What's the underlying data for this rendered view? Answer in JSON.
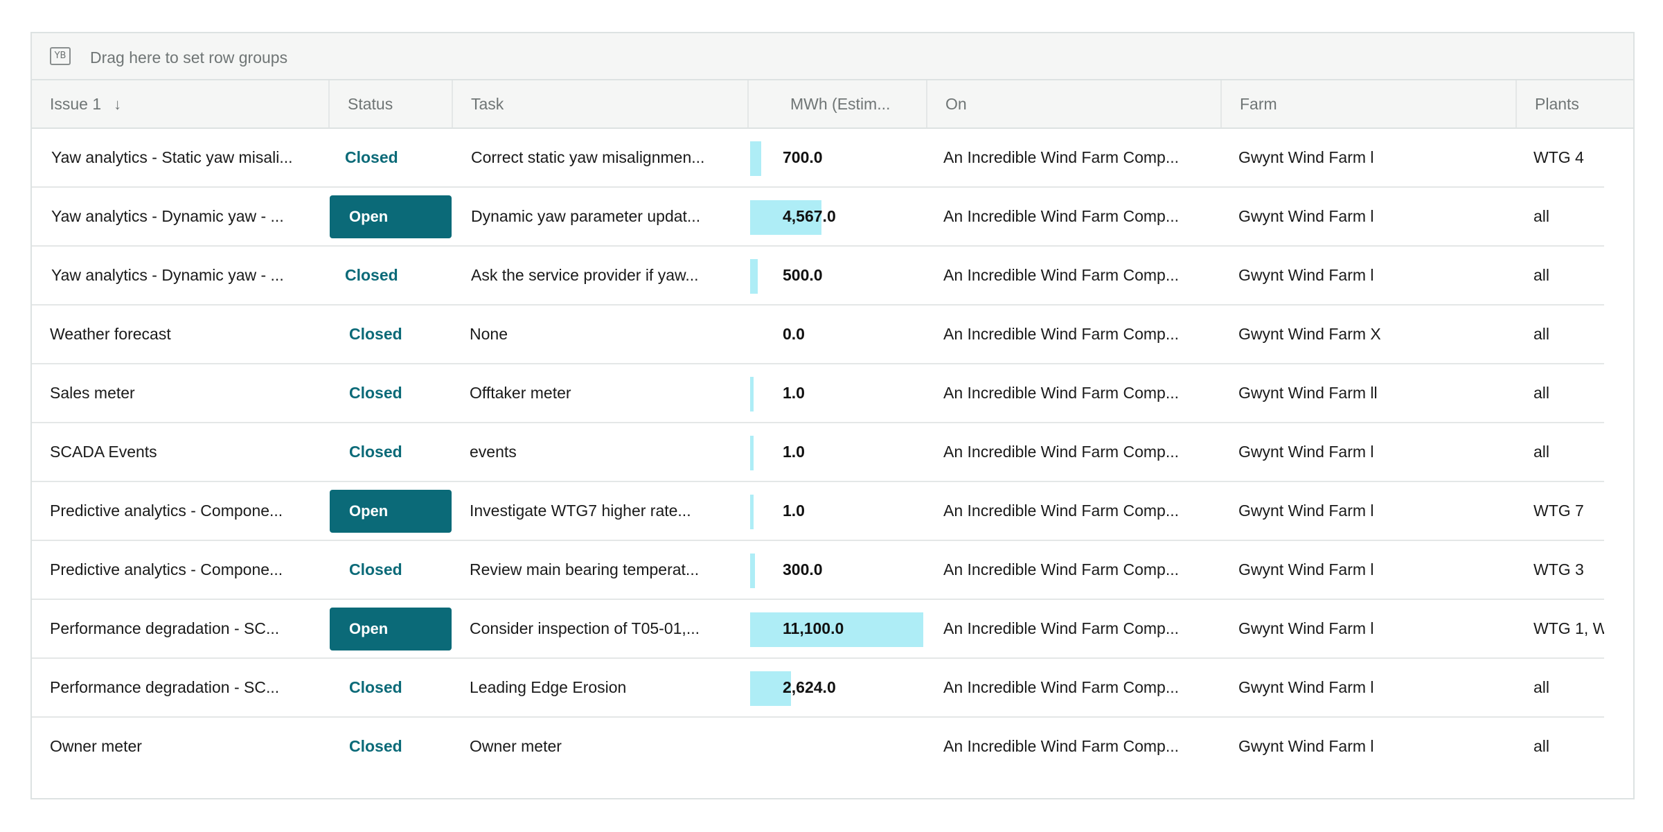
{
  "group_bar": {
    "icon": "row-group-icon",
    "icon_text": "YB",
    "text": "Drag here to set row groups"
  },
  "columns": {
    "issue": "Issue 1",
    "status": "Status",
    "task": "Task",
    "mwh": "MWh (Estim...",
    "on": "On",
    "farm": "Farm",
    "plants": "Plants"
  },
  "sort_icon": "↓",
  "mwh_max": 11100,
  "colors": {
    "accent": "#0b6a78",
    "bar": "#aeedf6"
  },
  "rows": [
    {
      "issue": "Yaw analytics - Static yaw misali...",
      "status": "Closed",
      "task": "Correct static yaw misalignmen...",
      "mwh": "700.0",
      "mwh_value": 700,
      "on": "An Incredible Wind Farm Comp...",
      "farm": "Gwynt Wind Farm l",
      "plants": "WTG 4"
    },
    {
      "issue": "Yaw analytics - Dynamic yaw - ...",
      "status": "Open",
      "task": "Dynamic yaw parameter updat...",
      "mwh": "4,567.0",
      "mwh_value": 4567,
      "on": "An Incredible Wind Farm Comp...",
      "farm": "Gwynt Wind Farm l",
      "plants": "all"
    },
    {
      "issue": "Yaw analytics - Dynamic yaw - ...",
      "status": "Closed",
      "task": "Ask the service provider if yaw...",
      "mwh": "500.0",
      "mwh_value": 500,
      "on": "An Incredible Wind Farm Comp...",
      "farm": "Gwynt Wind Farm l",
      "plants": "all"
    },
    {
      "issue": "Weather forecast",
      "status": "Closed",
      "task": "None",
      "mwh": "0.0",
      "mwh_value": 0,
      "on": "An Incredible Wind Farm Comp...",
      "farm": "Gwynt Wind Farm X",
      "plants": "all"
    },
    {
      "issue": "Sales meter",
      "status": "Closed",
      "task": "Offtaker meter",
      "mwh": "1.0",
      "mwh_value": 1,
      "on": "An Incredible Wind Farm Comp...",
      "farm": "Gwynt Wind Farm ll",
      "plants": "all"
    },
    {
      "issue": "SCADA Events",
      "status": "Closed",
      "task": "events",
      "mwh": "1.0",
      "mwh_value": 1,
      "on": "An Incredible Wind Farm Comp...",
      "farm": "Gwynt Wind Farm l",
      "plants": "all"
    },
    {
      "issue": "Predictive analytics - Compone...",
      "status": "Open",
      "task": "Investigate WTG7 higher rate...",
      "mwh": "1.0",
      "mwh_value": 1,
      "on": "An Incredible Wind Farm Comp...",
      "farm": "Gwynt Wind Farm l",
      "plants": "WTG 7"
    },
    {
      "issue": "Predictive analytics - Compone...",
      "status": "Closed",
      "task": "Review main bearing temperat...",
      "mwh": "300.0",
      "mwh_value": 300,
      "on": "An Incredible Wind Farm Comp...",
      "farm": "Gwynt Wind Farm l",
      "plants": "WTG 3"
    },
    {
      "issue": "Performance degradation - SC...",
      "status": "Open",
      "task": "Consider inspection of T05-01,...",
      "mwh": "11,100.0",
      "mwh_value": 11100,
      "on": "An Incredible Wind Farm Comp...",
      "farm": "Gwynt Wind Farm l",
      "plants": "WTG 1, W"
    },
    {
      "issue": "Performance degradation - SC...",
      "status": "Closed",
      "task": "Leading Edge Erosion",
      "mwh": "2,624.0",
      "mwh_value": 2624,
      "on": "An Incredible Wind Farm Comp...",
      "farm": "Gwynt Wind Farm l",
      "plants": "all"
    },
    {
      "issue": "Owner meter",
      "status": "Closed",
      "task": "Owner meter",
      "mwh": "",
      "mwh_value": null,
      "on": "An Incredible Wind Farm Comp...",
      "farm": "Gwynt Wind Farm l",
      "plants": "all"
    }
  ]
}
